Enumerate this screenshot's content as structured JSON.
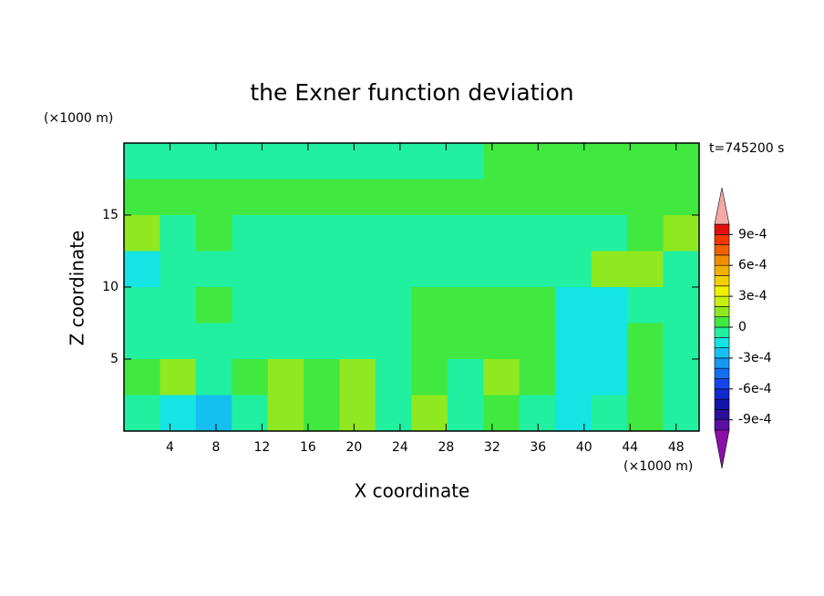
{
  "chart_data": {
    "type": "contour",
    "title": "the Exner function deviation",
    "x_label": "X coordinate",
    "y_label": "Z coordinate",
    "x_unit": "(×1000 m)",
    "y_unit": "(×1000 m)",
    "annotation": "t=745200 s",
    "xlim": [
      0,
      50
    ],
    "ylim": [
      0,
      20
    ],
    "xticks": [
      4,
      8,
      12,
      16,
      20,
      24,
      28,
      32,
      36,
      40,
      44,
      48
    ],
    "yticks": [
      5,
      10,
      15
    ],
    "x": [
      1.5625,
      4.6875,
      7.8125,
      10.9375,
      14.0625,
      17.1875,
      20.3125,
      23.4375,
      26.5625,
      29.6875,
      32.8125,
      35.9375,
      39.0625,
      42.1875,
      45.3125,
      48.4375
    ],
    "z": [
      18.75,
      16.25,
      13.75,
      11.25,
      8.75,
      6.25,
      3.75,
      1.25
    ],
    "values": [
      [
        -5e-05,
        -5e-05,
        -5e-05,
        -5e-05,
        -5e-05,
        -5e-05,
        -5e-05,
        -5e-05,
        -5e-05,
        -5e-05,
        5e-05,
        5e-05,
        5e-05,
        5e-05,
        5e-05,
        5e-05
      ],
      [
        5e-05,
        5e-05,
        5e-05,
        5e-05,
        5e-05,
        5e-05,
        5e-05,
        5e-05,
        5e-05,
        5e-05,
        5e-05,
        5e-05,
        5e-05,
        5e-05,
        5e-05,
        5e-05
      ],
      [
        0.00015,
        -5e-05,
        5e-05,
        -5e-05,
        -5e-05,
        -5e-05,
        -5e-05,
        -5e-05,
        -5e-05,
        -5e-05,
        -5e-05,
        -5e-05,
        -5e-05,
        -5e-05,
        5e-05,
        0.00015
      ],
      [
        -0.00015,
        -5e-05,
        -5e-05,
        -5e-05,
        -5e-05,
        -5e-05,
        -5e-05,
        -5e-05,
        -5e-05,
        -5e-05,
        -5e-05,
        -5e-05,
        -5e-05,
        0.00015,
        0.00015,
        -5e-05
      ],
      [
        -5e-05,
        -5e-05,
        5e-05,
        -5e-05,
        -5e-05,
        -5e-05,
        -5e-05,
        -5e-05,
        5e-05,
        5e-05,
        5e-05,
        5e-05,
        -0.00015,
        -0.00015,
        -5e-05,
        -5e-05
      ],
      [
        -5e-05,
        -5e-05,
        -5e-05,
        -5e-05,
        -5e-05,
        -5e-05,
        -5e-05,
        -5e-05,
        5e-05,
        5e-05,
        5e-05,
        5e-05,
        -0.00015,
        -0.00015,
        5e-05,
        -5e-05
      ],
      [
        5e-05,
        0.00015,
        -5e-05,
        5e-05,
        0.00015,
        5e-05,
        0.00015,
        -5e-05,
        5e-05,
        -5e-05,
        0.00015,
        5e-05,
        -0.00015,
        -0.00015,
        5e-05,
        -5e-05
      ],
      [
        -5e-05,
        -0.00015,
        -0.00025,
        -5e-05,
        0.00015,
        5e-05,
        0.00015,
        -5e-05,
        0.00015,
        -5e-05,
        5e-05,
        -5e-05,
        -0.00015,
        -5e-05,
        5e-05,
        -5e-05
      ]
    ],
    "levels": [
      -0.001,
      -0.0009,
      -0.0008,
      -0.0007,
      -0.0006,
      -0.0005,
      -0.0004,
      -0.0003,
      -0.0002,
      -0.0001,
      0,
      0.0001,
      0.0002,
      0.0003,
      0.0004,
      0.0005,
      0.0006,
      0.0007,
      0.0008,
      0.0009,
      0.001
    ],
    "colors": [
      "#5a10a0",
      "#2a109a",
      "#1414b0",
      "#1428d0",
      "#1446f0",
      "#1470f0",
      "#1498f0",
      "#14c0f0",
      "#14e4e4",
      "#20f0a0",
      "#40e840",
      "#90e820",
      "#c8f010",
      "#f0f000",
      "#f0d000",
      "#f0b000",
      "#f09000",
      "#f06000",
      "#f03800",
      "#e01010"
    ],
    "extend_colors": [
      "#8a10a8",
      "#f4a8a8"
    ],
    "colorbar_ticks": [
      {
        "value": 0.0009,
        "label": "9e-4"
      },
      {
        "value": 0.0006,
        "label": "6e-4"
      },
      {
        "value": 0.0003,
        "label": "3e-4"
      },
      0,
      {
        "value": -0.0003,
        "label": "-3e-4"
      },
      {
        "value": -0.0006,
        "label": "-6e-4"
      },
      {
        "value": -0.0009,
        "label": "-9e-4"
      }
    ]
  }
}
